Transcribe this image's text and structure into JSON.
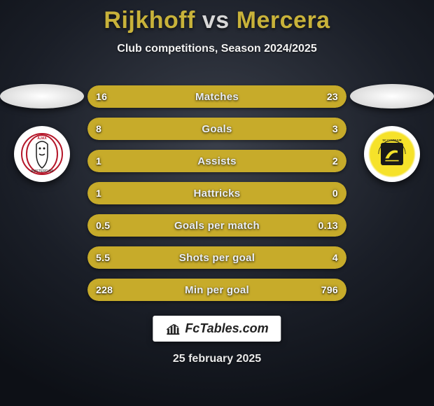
{
  "title": {
    "player1": "Rijkhoff",
    "vs": "vs",
    "player2": "Mercera"
  },
  "subtitle": "Club competitions, Season 2024/2025",
  "date": "25 february 2025",
  "branding": "FcTables.com",
  "colors": {
    "player1_fill": "#c7ab2a",
    "player2_fill": "#c7ab2a",
    "bar_bg": "#2e3440",
    "value_text": "#ffffff",
    "label_text": "#e9eef7"
  },
  "stats": [
    {
      "label": "Matches",
      "leftVal": "16",
      "rightVal": "23",
      "leftPct": 41,
      "rightPct": 59
    },
    {
      "label": "Goals",
      "leftVal": "8",
      "rightVal": "3",
      "leftPct": 72,
      "rightPct": 28
    },
    {
      "label": "Assists",
      "leftVal": "1",
      "rightVal": "2",
      "leftPct": 34,
      "rightPct": 66
    },
    {
      "label": "Hattricks",
      "leftVal": "1",
      "rightVal": "0",
      "leftPct": 100,
      "rightPct": 0
    },
    {
      "label": "Goals per match",
      "leftVal": "0.5",
      "rightVal": "0.13",
      "leftPct": 79,
      "rightPct": 21
    },
    {
      "label": "Shots per goal",
      "leftVal": "5.5",
      "rightVal": "4",
      "leftPct": 58,
      "rightPct": 42
    },
    {
      "label": "Min per goal",
      "leftVal": "228",
      "rightVal": "796",
      "leftPct": 23,
      "rightPct": 77
    }
  ]
}
